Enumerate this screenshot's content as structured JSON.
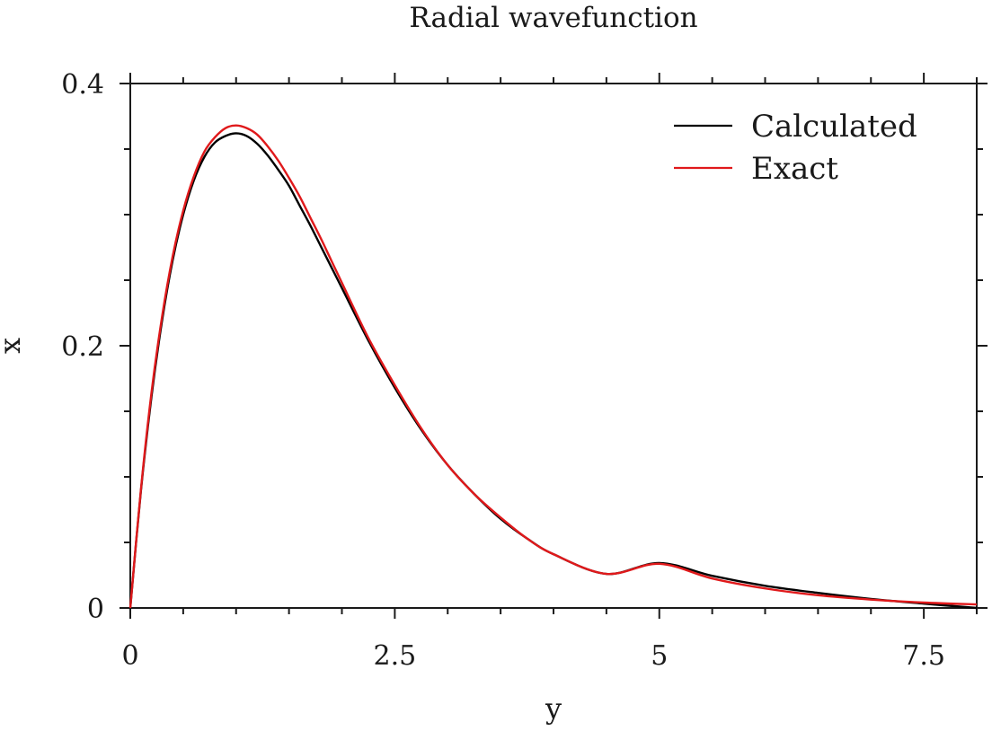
{
  "chart_data": {
    "type": "line",
    "title": "Radial wavefunction",
    "xlabel": "y",
    "ylabel": "x",
    "xlim": [
      0,
      8
    ],
    "ylim": [
      0,
      0.4
    ],
    "xticks": [
      0,
      2.5,
      5,
      7.5
    ],
    "xtick_labels": [
      "0",
      "2.5",
      "5",
      "7.5"
    ],
    "yticks": [
      0,
      0.2,
      0.4
    ],
    "ytick_labels": [
      "0",
      "0.2",
      "0.4"
    ],
    "x_minor_step": 0.5,
    "y_minor_step": 0.05,
    "grid": false,
    "legend": "top-right",
    "x": [
      0,
      0.1,
      0.2,
      0.3,
      0.4,
      0.5,
      0.6,
      0.7,
      0.8,
      0.9,
      1.0,
      1.1,
      1.2,
      1.3,
      1.4,
      1.5,
      1.6,
      1.7,
      1.8,
      1.9,
      2.0,
      2.25,
      2.5,
      2.75,
      3.0,
      3.25,
      3.5,
      3.75,
      4.0,
      4.5,
      5.0,
      5.5,
      6.0,
      6.5,
      7.0,
      7.5,
      8.0
    ],
    "series": [
      {
        "name": "Calculated",
        "color": "#000000",
        "values": [
          0.0,
          0.089,
          0.161,
          0.219,
          0.265,
          0.3,
          0.326,
          0.344,
          0.355,
          0.36,
          0.362,
          0.36,
          0.354,
          0.345,
          0.334,
          0.322,
          0.307,
          0.292,
          0.276,
          0.26,
          0.244,
          0.204,
          0.168,
          0.136,
          0.109,
          0.087,
          0.068,
          0.053,
          0.041,
          0.026,
          0.0343,
          0.0245,
          0.0169,
          0.0115,
          0.0069,
          0.0033,
          0.0
        ]
      },
      {
        "name": "Exact",
        "color": "#e0191b",
        "values": [
          0.0,
          0.09,
          0.164,
          0.222,
          0.268,
          0.303,
          0.329,
          0.348,
          0.359,
          0.366,
          0.368,
          0.366,
          0.361,
          0.352,
          0.341,
          0.328,
          0.314,
          0.298,
          0.282,
          0.265,
          0.248,
          0.206,
          0.17,
          0.137,
          0.109,
          0.087,
          0.069,
          0.053,
          0.041,
          0.026,
          0.0337,
          0.0225,
          0.0149,
          0.0097,
          0.0064,
          0.0041,
          0.0027
        ]
      }
    ]
  }
}
